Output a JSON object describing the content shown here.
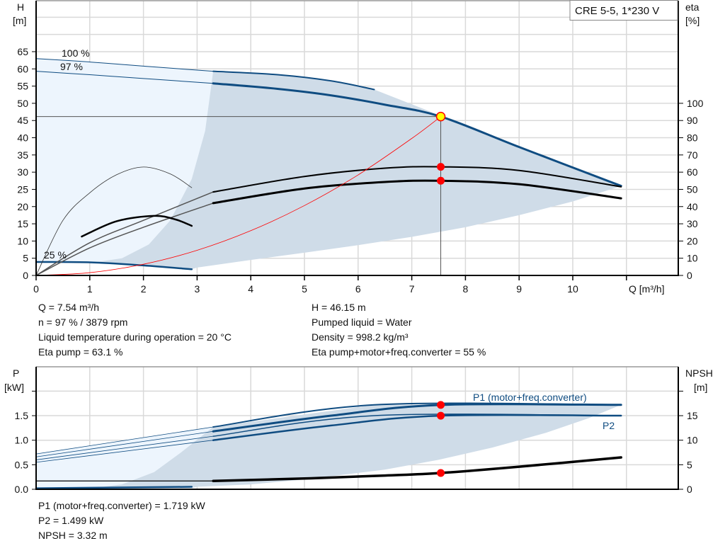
{
  "title": "CRE 5-5, 1*230 V",
  "colors": {
    "curve_blue": "#0f4c81",
    "light_area": "#edf5fd",
    "dark_area": "#cfdce8",
    "duty_point": "#ff0000",
    "op_point_fill": "#ffff00",
    "system_curve": "#ff0000",
    "eta_curve": "#000000"
  },
  "top_chart": {
    "y_label": "H",
    "y_unit": "[m]",
    "y2_label": "eta",
    "y2_unit": "[%]",
    "x_label": "Q [m³/h]",
    "x_ticks": [
      "0",
      "1",
      "2",
      "3",
      "4",
      "5",
      "6",
      "7",
      "8",
      "9",
      "10"
    ],
    "y_ticks": [
      "0",
      "5",
      "10",
      "15",
      "20",
      "25",
      "30",
      "35",
      "40",
      "45",
      "50",
      "55",
      "60",
      "65"
    ],
    "y2_ticks": [
      "0",
      "10",
      "20",
      "30",
      "40",
      "50",
      "60",
      "70",
      "80",
      "90",
      "100"
    ],
    "curve_labels": [
      "100 %",
      "97 %",
      "25 %"
    ],
    "readout_left": [
      "Q = 7.54 m³/h",
      "n = 97 % / 3879 rpm",
      "Liquid temperature during operation = 20 °C",
      "Eta pump = 63.1 %"
    ],
    "readout_right": [
      "H = 46.15 m",
      "Pumped liquid = Water",
      "Density = 998.2 kg/m³",
      "Eta pump+motor+freq.converter = 55 %"
    ]
  },
  "bottom_chart": {
    "y_label": "P",
    "y_unit": "[kW]",
    "y2_label": "NPSH",
    "y2_unit": "[m]",
    "y_ticks": [
      "0.0",
      "0.5",
      "1.0",
      "1.5"
    ],
    "y2_ticks": [
      "0",
      "5",
      "10",
      "15"
    ],
    "series_labels": [
      "P1 (motor+freq.converter)",
      "P2"
    ],
    "readout": [
      "P1 (motor+freq.converter) = 1.719 kW",
      "P2 = 1.499 kW",
      "NPSH = 3.32 m"
    ]
  },
  "chart_data": [
    {
      "type": "line",
      "title": "CRE 5-5, 1*230 V",
      "xlabel": "Q [m³/h]",
      "ylabel": "H [m]",
      "y2label": "eta [%]",
      "xlim": [
        0,
        12
      ],
      "ylim": [
        0,
        80
      ],
      "y2lim": [
        0,
        160
      ],
      "grid": true,
      "operating_point": {
        "Q": 7.54,
        "H": 46.15,
        "eta_pump": 63.1,
        "eta_total": 55
      },
      "series": {
        "qh_100": {
          "name": "100 %",
          "axis": "H",
          "points": [
            [
              0,
              63
            ],
            [
              1,
              62
            ],
            [
              2,
              60.8
            ],
            [
              3.3,
              59.3
            ],
            [
              4.5,
              58.3
            ],
            [
              5.5,
              56.5
            ],
            [
              6.3,
              54
            ],
            [
              7.54,
              46.4
            ],
            [
              9,
              37.3
            ],
            [
              10.9,
              26
            ]
          ]
        },
        "qh_97": {
          "name": "97 %",
          "axis": "H",
          "points": [
            [
              0,
              59.3
            ],
            [
              1,
              58.3
            ],
            [
              2,
              57.2
            ],
            [
              3.3,
              55.8
            ],
            [
              4.5,
              54.2
            ],
            [
              5.5,
              52.3
            ],
            [
              6.5,
              49.6
            ],
            [
              7.54,
              46.15
            ],
            [
              9,
              37.3
            ],
            [
              10.9,
              26
            ]
          ]
        },
        "qh_25": {
          "name": "25 %",
          "axis": "H",
          "points": [
            [
              0,
              3.9
            ],
            [
              1,
              3.8
            ],
            [
              2,
              2.9
            ],
            [
              2.9,
              1.8
            ]
          ]
        },
        "eta_pump": {
          "axis": "eta",
          "points": [
            [
              0,
              0
            ],
            [
              1,
              19
            ],
            [
              2,
              32
            ],
            [
              3.3,
              48.5
            ],
            [
              5,
              57.5
            ],
            [
              6.5,
              62.3
            ],
            [
              7.54,
              63.1
            ],
            [
              9,
              61
            ],
            [
              10.9,
              51.5
            ]
          ]
        },
        "eta_total": {
          "axis": "eta",
          "points": [
            [
              0,
              0
            ],
            [
              1,
              16
            ],
            [
              2,
              28
            ],
            [
              3.3,
              42
            ],
            [
              5,
              50.5
            ],
            [
              6.5,
              54.3
            ],
            [
              7.54,
              55
            ],
            [
              9,
              53
            ],
            [
              10.9,
              44.8
            ]
          ]
        },
        "eta_pump_low": {
          "axis": "eta",
          "points": [
            [
              0,
              0
            ],
            [
              0.5,
              32
            ],
            [
              1,
              48
            ],
            [
              1.5,
              58.5
            ],
            [
              2,
              63
            ],
            [
              2.5,
              59
            ],
            [
              2.9,
              51
            ]
          ]
        },
        "eta_total_low": {
          "axis": "eta",
          "points": [
            [
              0.85,
              22.6
            ],
            [
              1.5,
              31.5
            ],
            [
              2.2,
              34.6
            ],
            [
              2.6,
              32.5
            ],
            [
              2.9,
              28.8
            ]
          ]
        },
        "system_curve": {
          "axis": "H",
          "points": [
            [
              0,
              0
            ],
            [
              1,
              0.81
            ],
            [
              2,
              3.25
            ],
            [
              3,
              7.3
            ],
            [
              4,
              13
            ],
            [
              5,
              20.3
            ],
            [
              6,
              29.2
            ],
            [
              7,
              39.8
            ],
            [
              7.54,
              46.15
            ]
          ]
        }
      }
    },
    {
      "type": "line",
      "xlabel": "",
      "ylabel": "P [kW]",
      "y2label": "NPSH [m]",
      "xlim": [
        0,
        12
      ],
      "ylim": [
        0,
        2.4
      ],
      "y2lim": [
        0,
        24
      ],
      "grid": true,
      "operating_point": {
        "Q": 7.54,
        "P1": 1.719,
        "P2": 1.499,
        "NPSH": 3.32
      },
      "series": {
        "p1_100": {
          "axis": "P",
          "points": [
            [
              0,
              0.72
            ],
            [
              3.3,
              1.27
            ],
            [
              6.3,
              1.72
            ],
            [
              10.9,
              1.72
            ]
          ]
        },
        "p1_97": {
          "name": "P1 (motor+freq.converter)",
          "axis": "P",
          "points": [
            [
              0,
              0.66
            ],
            [
              3.3,
              1.18
            ],
            [
              5.5,
              1.5
            ],
            [
              7.54,
              1.719
            ],
            [
              10.9,
              1.72
            ]
          ]
        },
        "p2_100": {
          "axis": "P",
          "points": [
            [
              0,
              0.6
            ],
            [
              3.3,
              1.08
            ],
            [
              6.3,
              1.5
            ],
            [
              10.9,
              1.5
            ]
          ]
        },
        "p2_97": {
          "name": "P2",
          "axis": "P",
          "points": [
            [
              0,
              0.55
            ],
            [
              3.3,
              1.0
            ],
            [
              5.5,
              1.3
            ],
            [
              7.54,
              1.499
            ],
            [
              10.9,
              1.5
            ]
          ]
        },
        "p_25": {
          "axis": "P",
          "points": [
            [
              0,
              0.02
            ],
            [
              1,
              0.03
            ],
            [
              2.9,
              0.05
            ]
          ]
        },
        "npsh": {
          "axis": "NPSH",
          "points": [
            [
              0,
              1.7
            ],
            [
              3.3,
              1.7
            ],
            [
              5,
              2.2
            ],
            [
              6.5,
              2.8
            ],
            [
              7.54,
              3.32
            ],
            [
              9,
              4.6
            ],
            [
              10.9,
              6.5
            ]
          ]
        }
      }
    }
  ]
}
